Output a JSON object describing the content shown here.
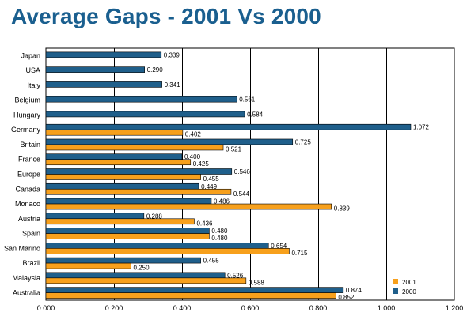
{
  "chart_data": {
    "type": "bar",
    "orientation": "horizontal",
    "title": "Average Gaps - 2001 Vs 2000",
    "categories": [
      "Japan",
      "USA",
      "Italy",
      "Belgium",
      "Hungary",
      "Germany",
      "Britain",
      "France",
      "Europe",
      "Canada",
      "Monaco",
      "Austria",
      "Spain",
      "San Marino",
      "Brazil",
      "Malaysia",
      "Australia"
    ],
    "series": [
      {
        "name": "2000",
        "color": "#1f5f8b",
        "values": [
          0.339,
          0.29,
          0.341,
          0.561,
          0.584,
          1.072,
          0.725,
          0.4,
          0.546,
          0.449,
          0.486,
          0.288,
          0.48,
          0.654,
          0.455,
          0.526,
          0.874
        ],
        "labels": [
          "0.339",
          "0.290",
          "0.341",
          "0.561",
          "0.584",
          "1.072",
          "0.725",
          "0.400",
          "0.546",
          "0.449",
          "0.486",
          "0.288",
          "0.480",
          "0.654",
          "0.455",
          "0.526",
          "0.874"
        ]
      },
      {
        "name": "2001",
        "color": "#f7a01c",
        "values": [
          null,
          null,
          null,
          null,
          null,
          0.402,
          0.521,
          0.425,
          0.455,
          0.544,
          0.839,
          0.436,
          0.48,
          0.715,
          0.25,
          0.588,
          0.852
        ],
        "labels": [
          null,
          null,
          null,
          null,
          null,
          "0.402",
          "0.521",
          "0.425",
          "0.455",
          "0.544",
          "0.839",
          "0.436",
          "0.480",
          "0.715",
          "0.250",
          "0.588",
          "0.852"
        ]
      }
    ],
    "xlim": [
      0,
      1.2
    ],
    "xticks": [
      0,
      0.2,
      0.4,
      0.6,
      0.8,
      1.0,
      1.2
    ],
    "xtick_labels": [
      "0.000",
      "0.200",
      "0.400",
      "0.600",
      "0.800",
      "1.000",
      "1.200"
    ],
    "xlabel": "",
    "ylabel": "",
    "grid": "vertical",
    "legend": {
      "placement": "bottom-right",
      "entries": [
        {
          "name": "2001",
          "color": "#f7a01c"
        },
        {
          "name": "2000",
          "color": "#1f5f8b"
        }
      ]
    }
  }
}
